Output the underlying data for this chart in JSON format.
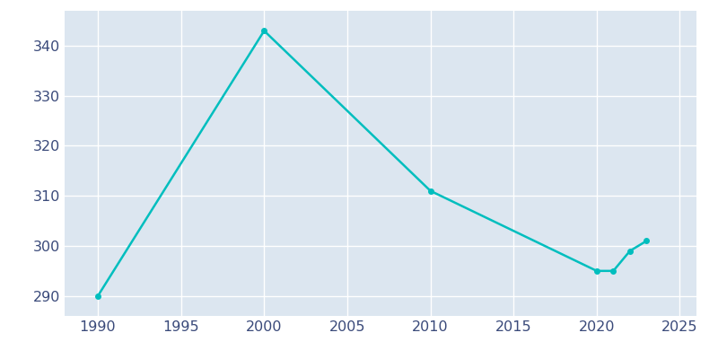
{
  "years": [
    1990,
    2000,
    2010,
    2020,
    2021,
    2022,
    2023
  ],
  "population": [
    290,
    343,
    311,
    295,
    295,
    299,
    301
  ],
  "line_color": "#00BEBE",
  "plot_bg_color": "#dce6f0",
  "fig_bg_color": "#ffffff",
  "grid_color": "#ffffff",
  "tick_color": "#3a4a7a",
  "xlim": [
    1988,
    2026
  ],
  "ylim": [
    286,
    347
  ],
  "yticks": [
    290,
    300,
    310,
    320,
    330,
    340
  ],
  "xticks": [
    1990,
    1995,
    2000,
    2005,
    2010,
    2015,
    2020,
    2025
  ],
  "linewidth": 1.8,
  "markersize": 4.0,
  "tick_fontsize": 11.5
}
